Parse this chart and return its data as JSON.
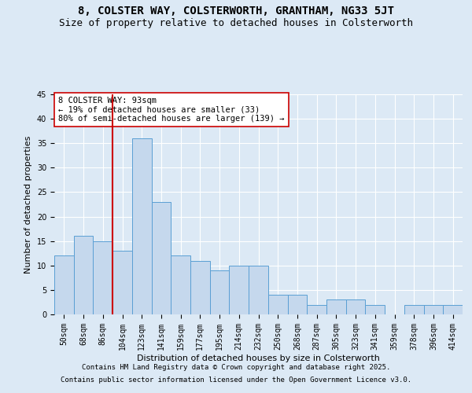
{
  "title_line1": "8, COLSTER WAY, COLSTERWORTH, GRANTHAM, NG33 5JT",
  "title_line2": "Size of property relative to detached houses in Colsterworth",
  "xlabel": "Distribution of detached houses by size in Colsterworth",
  "ylabel": "Number of detached properties",
  "bar_labels": [
    "50sqm",
    "68sqm",
    "86sqm",
    "104sqm",
    "123sqm",
    "141sqm",
    "159sqm",
    "177sqm",
    "195sqm",
    "214sqm",
    "232sqm",
    "250sqm",
    "268sqm",
    "287sqm",
    "305sqm",
    "323sqm",
    "341sqm",
    "359sqm",
    "378sqm",
    "396sqm",
    "414sqm"
  ],
  "bar_values": [
    12,
    16,
    15,
    13,
    36,
    23,
    12,
    11,
    9,
    10,
    10,
    4,
    4,
    2,
    3,
    3,
    2,
    0,
    2,
    2,
    2
  ],
  "bar_color": "#c5d8ed",
  "bar_edge_color": "#5a9fd4",
  "vline_color": "#cc0000",
  "annotation_text": "8 COLSTER WAY: 93sqm\n← 19% of detached houses are smaller (33)\n80% of semi-detached houses are larger (139) →",
  "annotation_box_color": "#ffffff",
  "annotation_box_edge": "#cc0000",
  "ylim": [
    0,
    45
  ],
  "yticks": [
    0,
    5,
    10,
    15,
    20,
    25,
    30,
    35,
    40,
    45
  ],
  "background_color": "#dce9f5",
  "plot_bg_color": "#dce9f5",
  "grid_color": "#ffffff",
  "footer_line1": "Contains HM Land Registry data © Crown copyright and database right 2025.",
  "footer_line2": "Contains public sector information licensed under the Open Government Licence v3.0.",
  "title_fontsize": 10,
  "subtitle_fontsize": 9,
  "axis_label_fontsize": 8,
  "tick_fontsize": 7,
  "annotation_fontsize": 7.5,
  "footer_fontsize": 6.5
}
